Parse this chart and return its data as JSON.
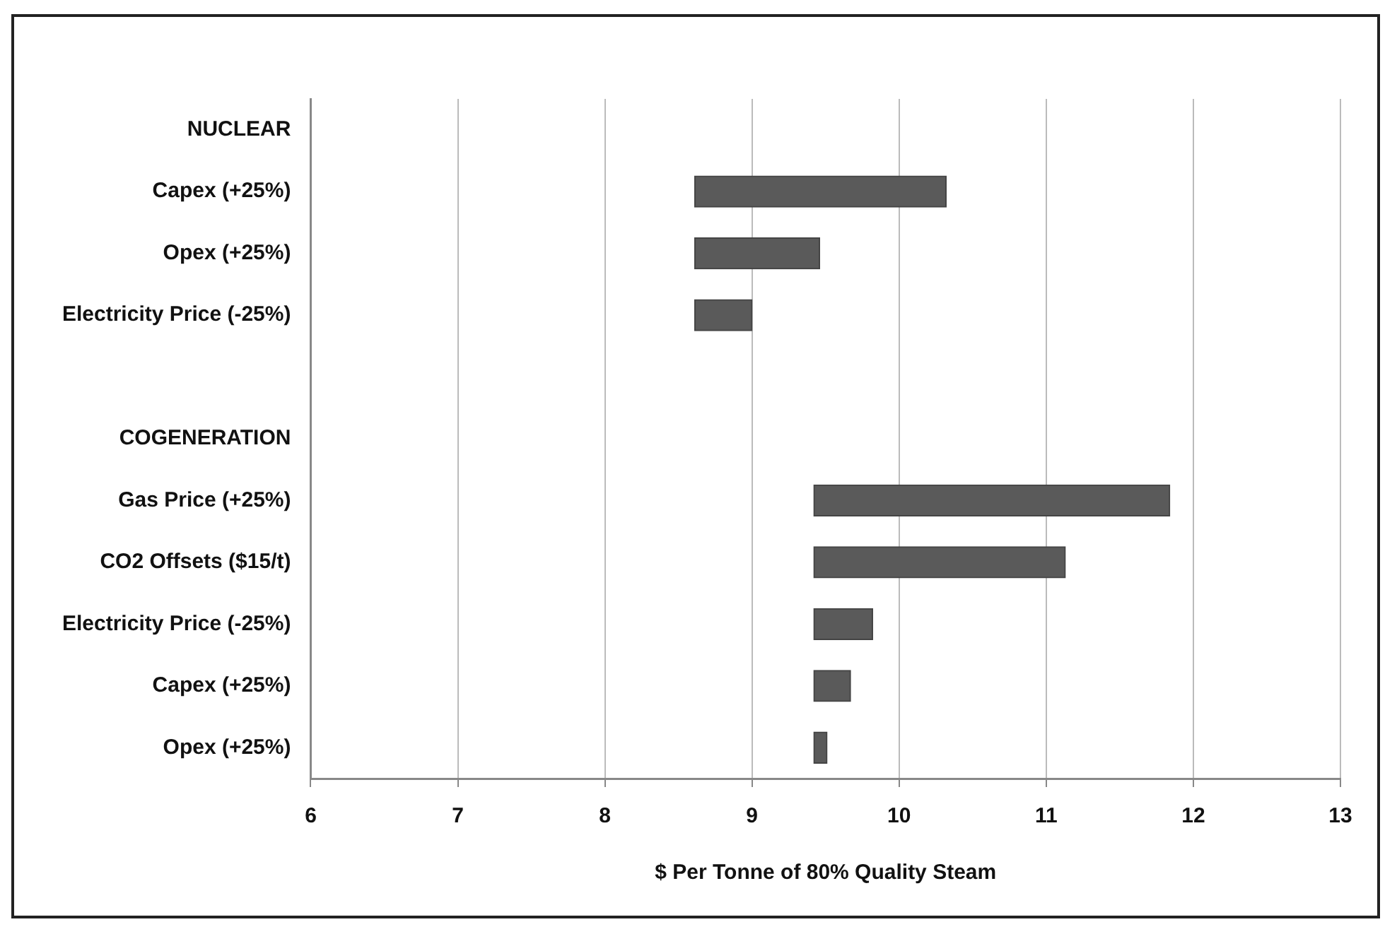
{
  "chart_data": {
    "type": "bar",
    "orientation": "horizontal",
    "categories": [
      "NUCLEAR",
      "Capex (+25%)",
      "Opex (+25%)",
      "Electricity Price (-25%)",
      null,
      "COGENERATION",
      "Gas Price (+25%)",
      "CO2 Offsets ($15/t)",
      "Electricity Price (-25%)",
      "Capex (+25%)",
      "Opex (+25%)"
    ],
    "base": [
      null,
      8.61,
      8.61,
      8.61,
      null,
      null,
      9.42,
      9.42,
      9.42,
      9.42,
      9.42
    ],
    "values": [
      null,
      1.71,
      0.85,
      0.39,
      null,
      null,
      2.42,
      1.71,
      0.4,
      0.25,
      0.09
    ],
    "color": "#5a5a5a",
    "xlabel": "$ Per Tonne of 80% Quality Steam",
    "xlim": [
      6,
      13
    ],
    "xticks": [
      6,
      7,
      8,
      9,
      10,
      11,
      12,
      13
    ],
    "grid": "x",
    "legend": false
  }
}
